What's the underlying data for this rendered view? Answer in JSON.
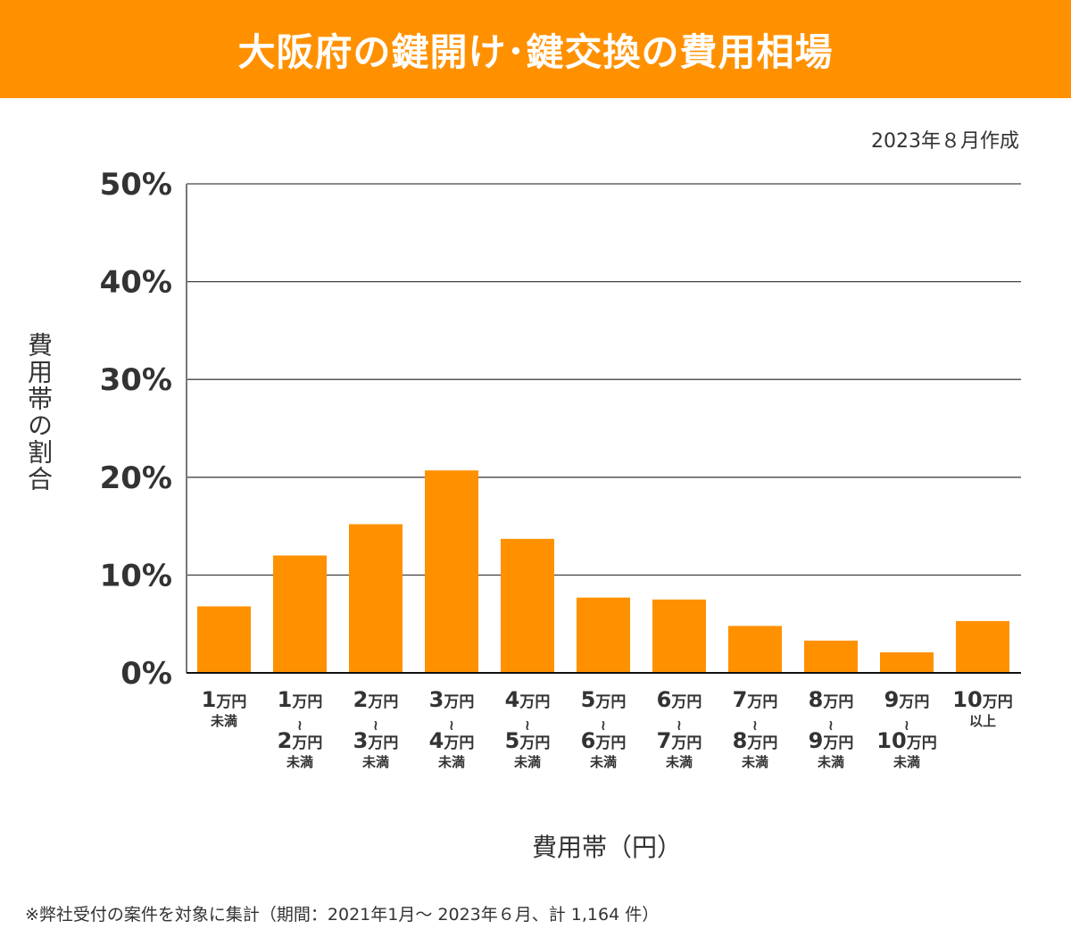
{
  "header": {
    "title": "大阪府の鍵開け･鍵交換の費用相場"
  },
  "date": "2023年８月作成",
  "note": "※弊社受付の案件を対象に集計（期間：2021年1月～ 2023年６月、計 1,164 件）",
  "chart_data": {
    "type": "bar",
    "title": "大阪府の鍵開け･鍵交換の費用相場",
    "xlabel": "費用帯（円）",
    "ylabel": "費用帯の割合",
    "ylim": [
      0,
      50
    ],
    "yticks": [
      "0%",
      "10%",
      "20%",
      "30%",
      "40%",
      "50%"
    ],
    "grid": true,
    "bar_color": "#ff9100",
    "categories": [
      [
        "1万円",
        "未満"
      ],
      [
        "1万円",
        "〜",
        "2万円",
        "未満"
      ],
      [
        "2万円",
        "〜",
        "3万円",
        "未満"
      ],
      [
        "3万円",
        "〜",
        "4万円",
        "未満"
      ],
      [
        "4万円",
        "〜",
        "5万円",
        "未満"
      ],
      [
        "5万円",
        "〜",
        "6万円",
        "未満"
      ],
      [
        "6万円",
        "〜",
        "7万円",
        "未満"
      ],
      [
        "7万円",
        "〜",
        "8万円",
        "未満"
      ],
      [
        "8万円",
        "〜",
        "9万円",
        "未満"
      ],
      [
        "9万円",
        "〜",
        "10万円",
        "未満"
      ],
      [
        "10万円",
        "以上"
      ]
    ],
    "values": [
      6.8,
      12.0,
      15.2,
      20.7,
      13.7,
      7.7,
      7.5,
      4.8,
      3.3,
      2.1,
      5.3
    ]
  }
}
